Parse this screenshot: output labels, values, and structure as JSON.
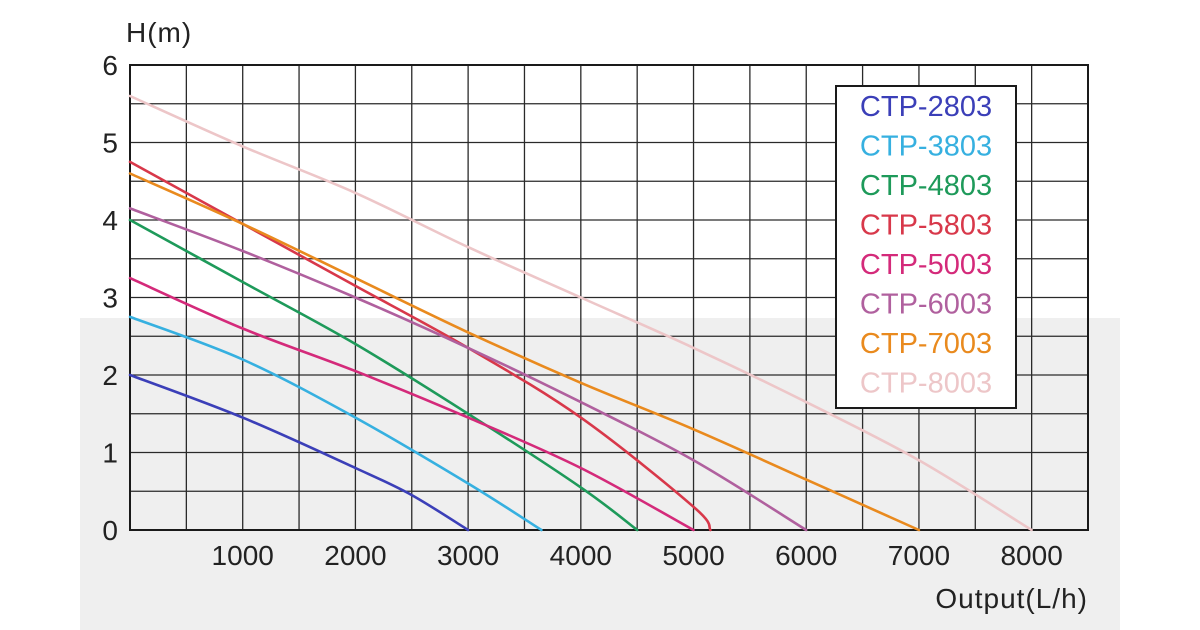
{
  "chart_data": {
    "type": "line",
    "xlabel": "Output(L/h)",
    "ylabel": "H(m)",
    "xlim": [
      0,
      8500
    ],
    "ylim": [
      0,
      6
    ],
    "x_ticks": [
      1000,
      2000,
      3000,
      4000,
      5000,
      6000,
      7000,
      8000
    ],
    "x_tick_labels": [
      "1000",
      "2000",
      "3000",
      "4000",
      "5000",
      "6000",
      "7000",
      "8000"
    ],
    "y_ticks": [
      0,
      1,
      2,
      3,
      4,
      5,
      6
    ],
    "y_tick_labels": [
      "0",
      "1",
      "2",
      "3",
      "4",
      "5",
      "6"
    ],
    "grid": true,
    "legend_position": "top-right",
    "series": [
      {
        "name": "CTP-2803",
        "color": "#3b3fb8",
        "x": [
          0,
          1000,
          2000,
          2500,
          3000
        ],
        "y": [
          2.0,
          1.45,
          0.8,
          0.45,
          0.0
        ]
      },
      {
        "name": "CTP-3803",
        "color": "#36b0e0",
        "x": [
          0,
          1000,
          2000,
          3000,
          3650
        ],
        "y": [
          2.75,
          2.2,
          1.45,
          0.6,
          0.0
        ]
      },
      {
        "name": "CTP-4803",
        "color": "#1e9a5a",
        "x": [
          0,
          1000,
          2000,
          3000,
          4000,
          4500
        ],
        "y": [
          4.0,
          3.2,
          2.4,
          1.5,
          0.55,
          0.0
        ]
      },
      {
        "name": "CTP-5803",
        "color": "#d8384a",
        "x": [
          0,
          1000,
          2000,
          3000,
          4000,
          5000,
          5150
        ],
        "y": [
          4.75,
          3.95,
          3.15,
          2.35,
          1.45,
          0.3,
          0.0
        ]
      },
      {
        "name": "CTP-5003",
        "color": "#d42a7a",
        "x": [
          0,
          1000,
          2000,
          3000,
          4000,
          5000
        ],
        "y": [
          3.25,
          2.6,
          2.05,
          1.45,
          0.8,
          0.0
        ]
      },
      {
        "name": "CTP-6003",
        "color": "#b0609e",
        "x": [
          0,
          1000,
          2000,
          3000,
          4000,
          5000,
          6000
        ],
        "y": [
          4.15,
          3.6,
          3.0,
          2.35,
          1.65,
          0.9,
          0.0
        ]
      },
      {
        "name": "CTP-7003",
        "color": "#e98a1e",
        "x": [
          0,
          1000,
          2000,
          3000,
          4000,
          5000,
          6000,
          7000
        ],
        "y": [
          4.6,
          3.95,
          3.25,
          2.55,
          1.9,
          1.3,
          0.65,
          0.0
        ]
      },
      {
        "name": "CTP-8003",
        "color": "#edc6c8",
        "x": [
          0,
          1000,
          2000,
          3000,
          4000,
          5000,
          6000,
          7000,
          8000
        ],
        "y": [
          5.6,
          4.95,
          4.35,
          3.65,
          3.0,
          2.35,
          1.65,
          0.9,
          0.0
        ]
      }
    ]
  }
}
